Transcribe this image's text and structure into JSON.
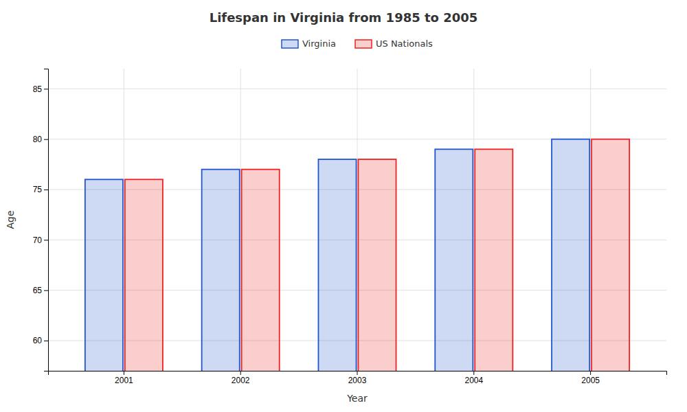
{
  "chart_data": {
    "type": "bar",
    "title": "Lifespan in Virginia from 1985 to 2005",
    "xlabel": "Year",
    "ylabel": "Age",
    "categories": [
      "2001",
      "2002",
      "2003",
      "2004",
      "2005"
    ],
    "series": [
      {
        "name": "Virginia",
        "color": "#2255cc",
        "values": [
          76,
          77,
          78,
          79,
          80
        ]
      },
      {
        "name": "US Nationals",
        "color": "#ee2222",
        "values": [
          76,
          77,
          78,
          79,
          80
        ]
      }
    ],
    "ylim": [
      57,
      87
    ],
    "yticks": [
      60,
      65,
      70,
      75,
      80,
      85
    ],
    "grid": true,
    "legend": "top"
  }
}
